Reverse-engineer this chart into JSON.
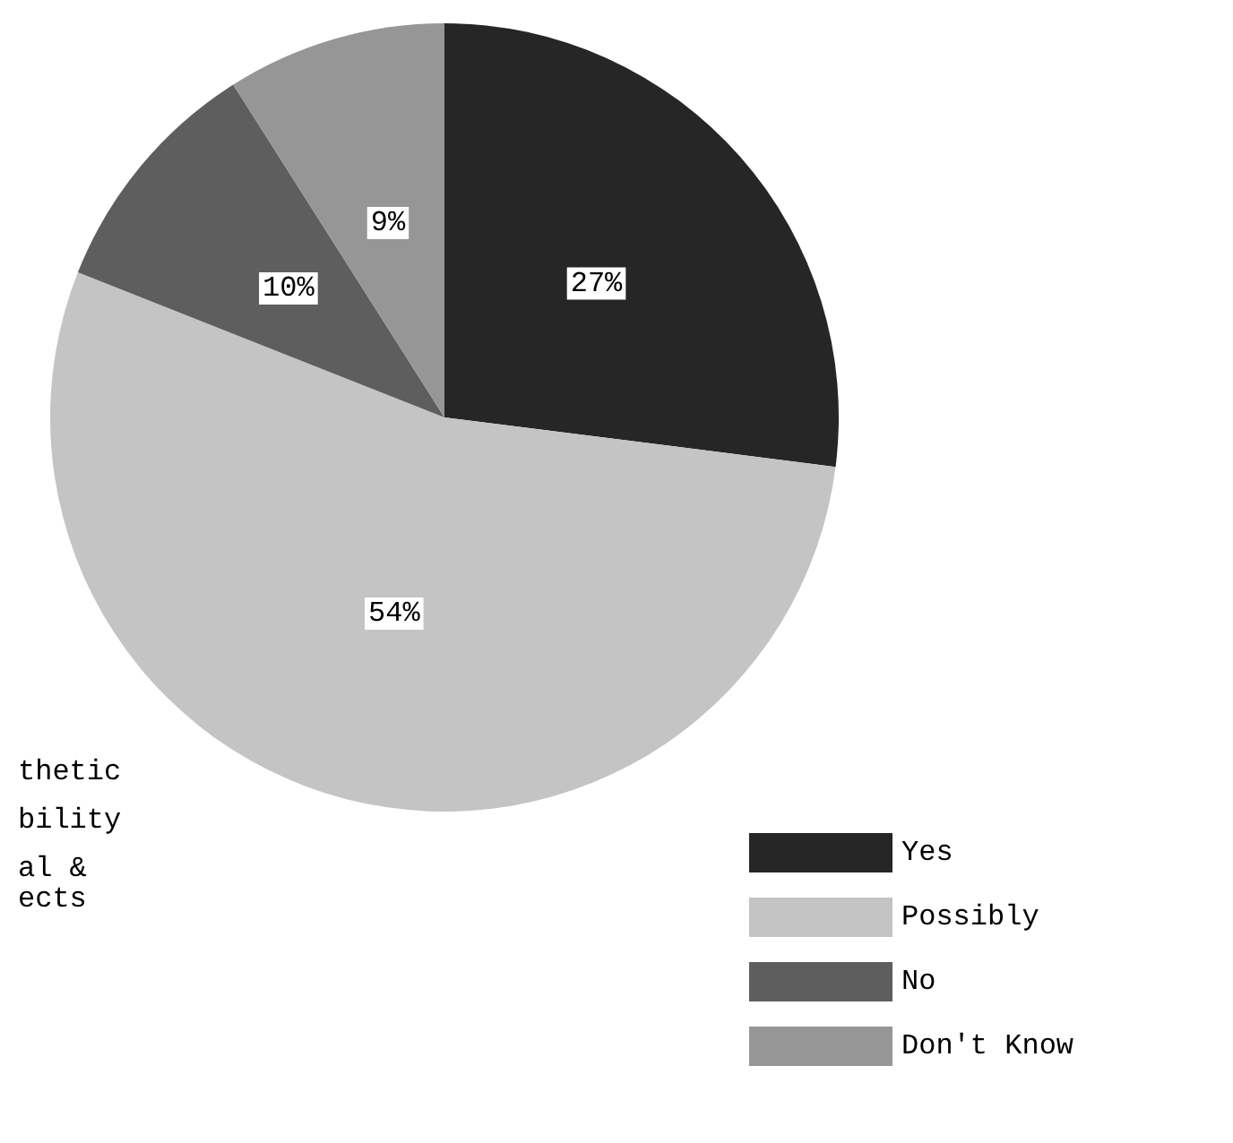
{
  "chart_data": {
    "type": "pie",
    "categories": [
      "Yes",
      "Possibly",
      "No",
      "Don't Know"
    ],
    "values": [
      27,
      54,
      10,
      9
    ],
    "colors": [
      "#262626",
      "#c4c4c4",
      "#5e5e5e",
      "#969696"
    ],
    "value_labels": [
      "27%",
      "54%",
      "10%",
      "9%"
    ],
    "legend": "bottom right",
    "annotations": [
      "thetic",
      "bility",
      "al &",
      "ects"
    ]
  }
}
